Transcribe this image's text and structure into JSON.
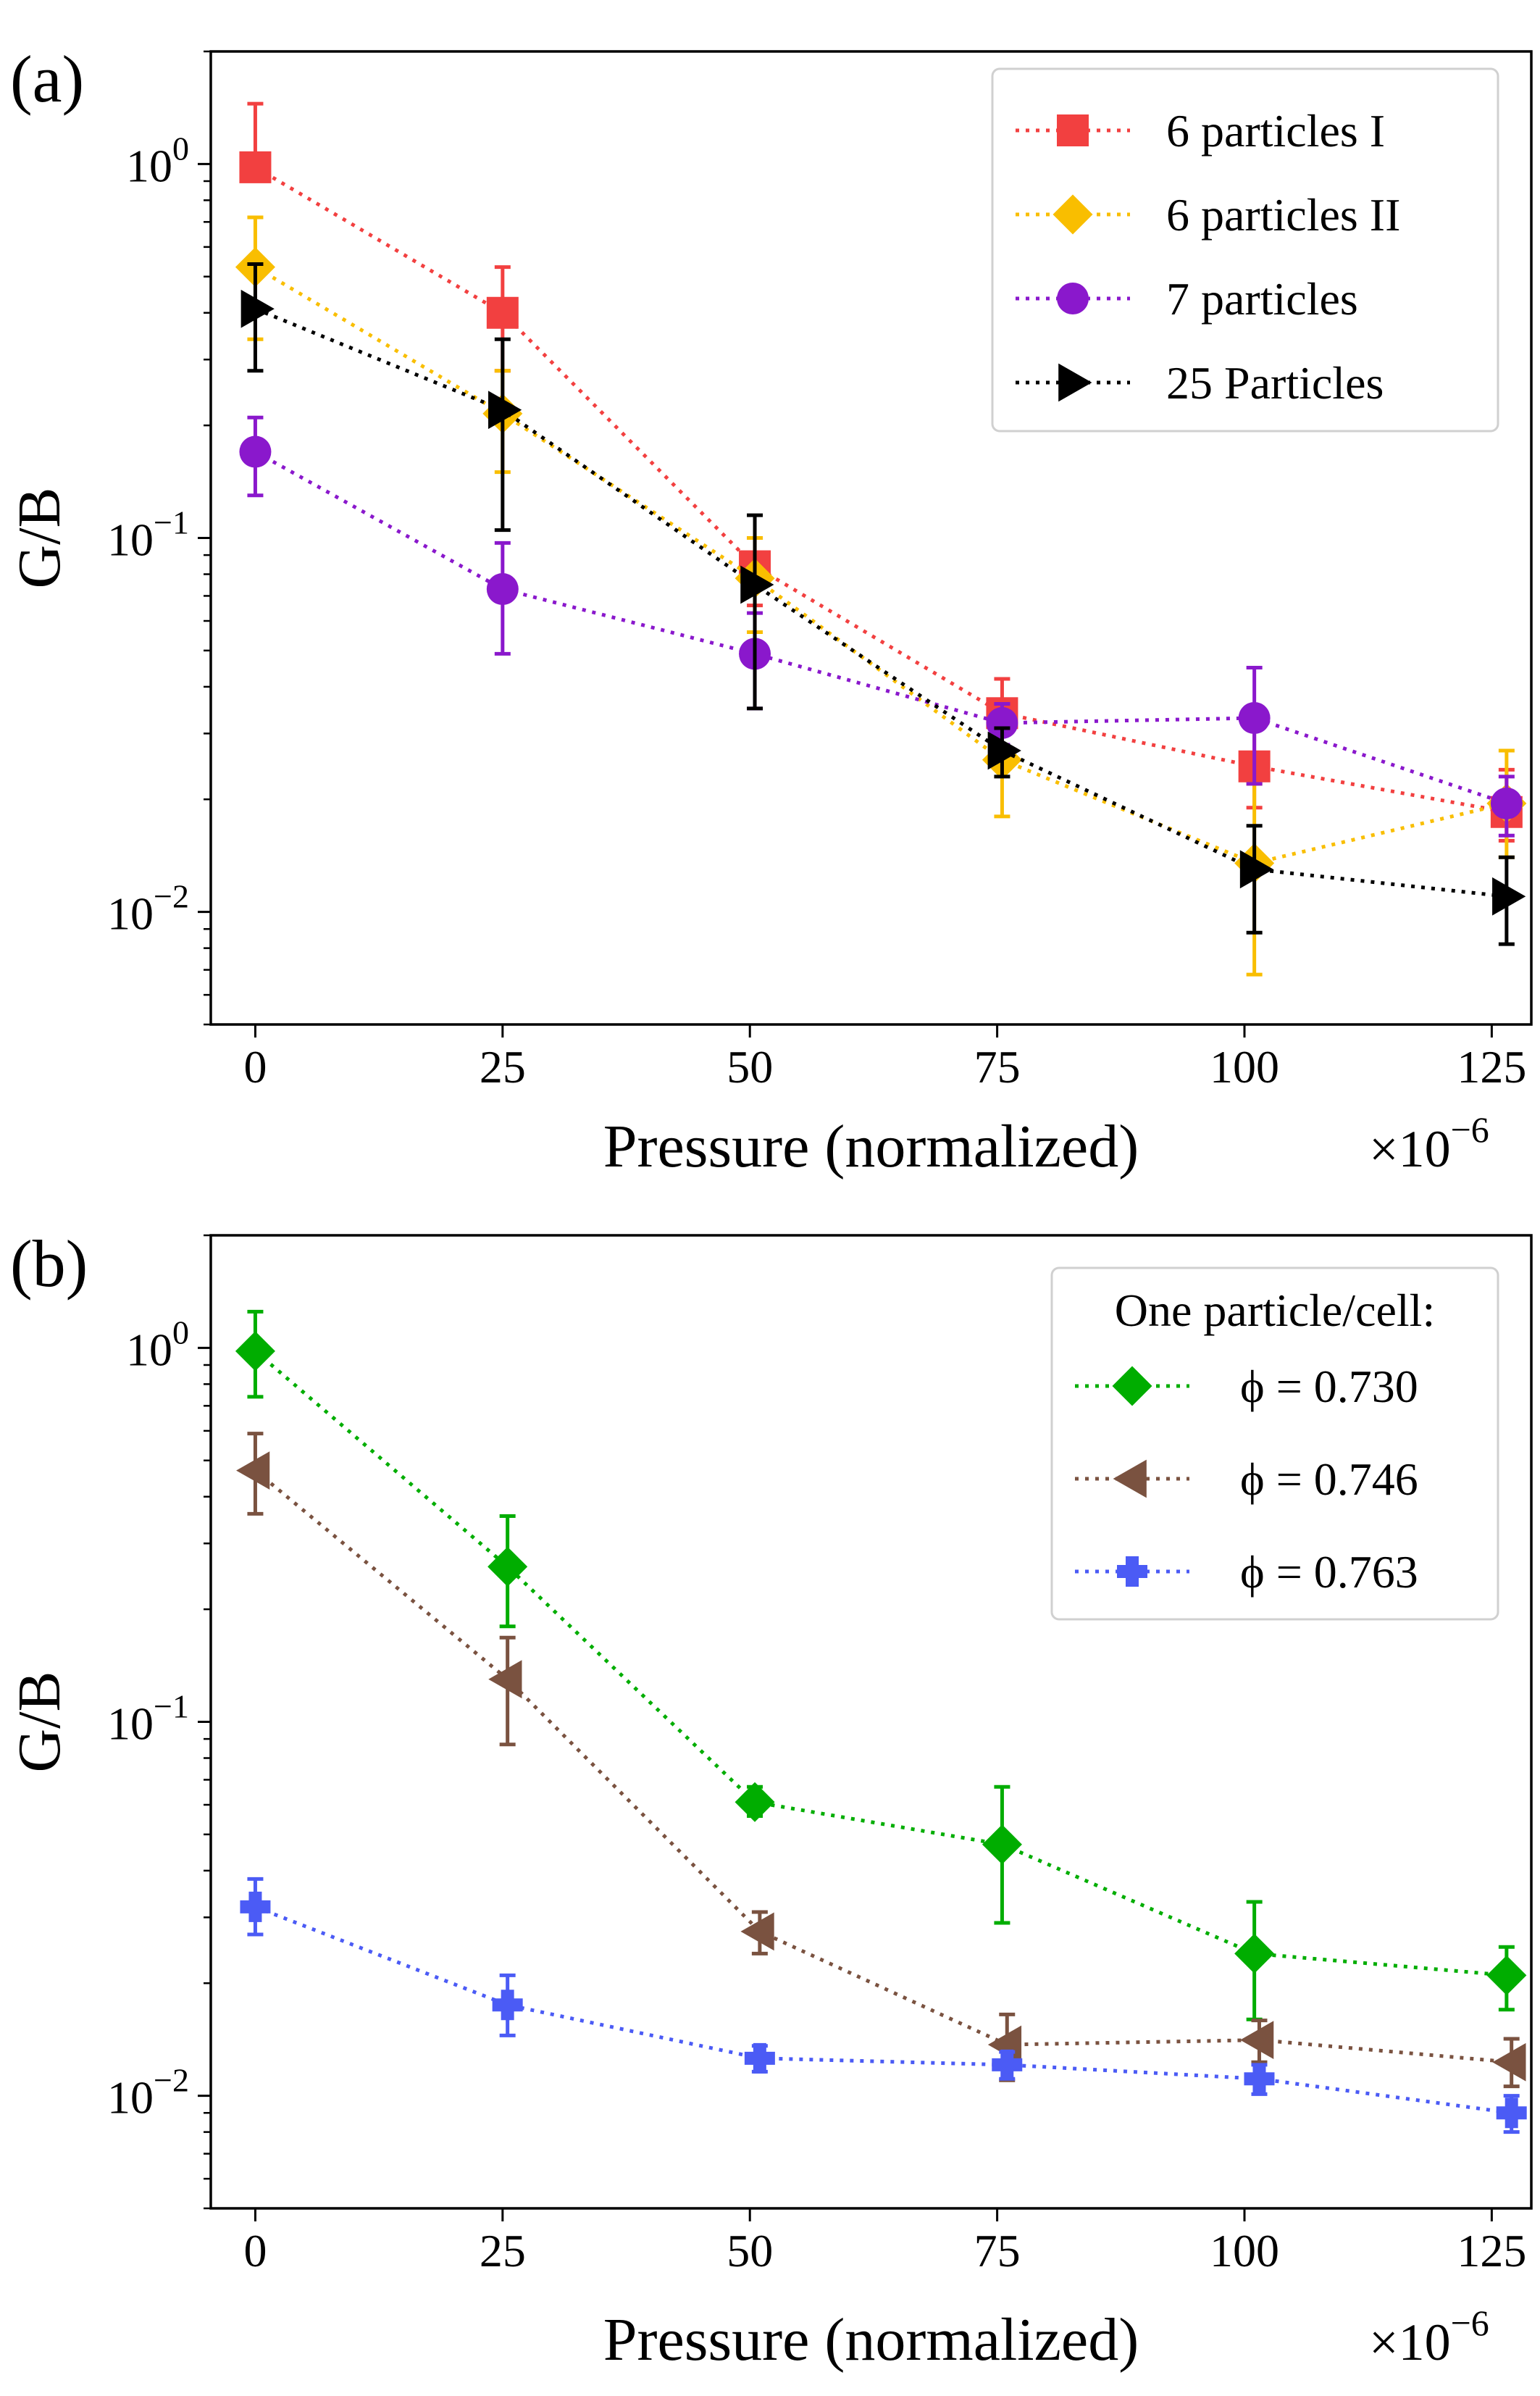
{
  "chart_data": [
    {
      "type": "line",
      "panel_label": "(a)",
      "xlabel": "Pressure (normalized)",
      "x_multiplier": "×10",
      "x_multiplier_exp": "−6",
      "ylabel": "G/B",
      "yscale": "log",
      "xlim": [
        -4.5,
        129
      ],
      "ylim": [
        0.005,
        2.0
      ],
      "xticks": [
        0,
        25,
        50,
        75,
        100,
        125
      ],
      "xtick_labels": [
        "0",
        "25",
        "50",
        "75",
        "100",
        "125"
      ],
      "yticks": [
        {
          "value": 1,
          "base": "10",
          "exp": "0"
        },
        {
          "value": 0.1,
          "base": "10",
          "exp": "−1"
        },
        {
          "value": 0.01,
          "base": "10",
          "exp": "−2"
        }
      ],
      "legend_title": "",
      "legend_position": "top-right",
      "series": [
        {
          "name": "6 particles I",
          "color": "#f24040",
          "marker": "square",
          "x": [
            0,
            25,
            50.5,
            75.5,
            101,
            126.5
          ],
          "y": [
            0.98,
            0.4,
            0.084,
            0.034,
            0.0245,
            0.0185
          ],
          "err_lo": [
            0.98,
            0.28,
            0.066,
            0.027,
            0.019,
            0.0155
          ],
          "err_hi": [
            1.45,
            0.53,
            0.1,
            0.042,
            0.032,
            0.024
          ]
        },
        {
          "name": "6 particles II",
          "color": "#f9be00",
          "marker": "diamond",
          "x": [
            0,
            25,
            50.5,
            75.5,
            101,
            126.5
          ],
          "y": [
            0.53,
            0.215,
            0.078,
            0.0255,
            0.0135,
            0.0195
          ],
          "err_lo": [
            0.34,
            0.15,
            0.056,
            0.018,
            0.0068,
            0.014
          ],
          "err_hi": [
            0.72,
            0.28,
            0.1,
            0.033,
            0.022,
            0.027
          ]
        },
        {
          "name": "7 particles",
          "color": "#8a18cc",
          "marker": "circle",
          "x": [
            0,
            25,
            50.5,
            75.5,
            101,
            126.5
          ],
          "y": [
            0.17,
            0.073,
            0.049,
            0.032,
            0.033,
            0.0195
          ],
          "err_lo": [
            0.13,
            0.049,
            0.035,
            0.028,
            0.022,
            0.016
          ],
          "err_hi": [
            0.21,
            0.097,
            0.063,
            0.036,
            0.045,
            0.023
          ]
        },
        {
          "name": "25 Particles",
          "color": "#000000",
          "marker": "triangle-right",
          "x": [
            0,
            25,
            50.5,
            75.5,
            101,
            126.5
          ],
          "y": [
            0.41,
            0.22,
            0.075,
            0.027,
            0.013,
            0.011
          ],
          "err_lo": [
            0.28,
            0.105,
            0.035,
            0.023,
            0.0088,
            0.0082
          ],
          "err_hi": [
            0.54,
            0.34,
            0.115,
            0.031,
            0.017,
            0.014
          ]
        }
      ]
    },
    {
      "type": "line",
      "panel_label": "(b)",
      "xlabel": "Pressure (normalized)",
      "x_multiplier": "×10",
      "x_multiplier_exp": "−6",
      "ylabel": "G/B",
      "yscale": "log",
      "xlim": [
        -4.5,
        129
      ],
      "ylim": [
        0.005,
        2.0
      ],
      "xticks": [
        0,
        25,
        50,
        75,
        100,
        125
      ],
      "xtick_labels": [
        "0",
        "25",
        "50",
        "75",
        "100",
        "125"
      ],
      "yticks": [
        {
          "value": 1,
          "base": "10",
          "exp": "0"
        },
        {
          "value": 0.1,
          "base": "10",
          "exp": "−1"
        },
        {
          "value": 0.01,
          "base": "10",
          "exp": "−2"
        }
      ],
      "legend_title": "One particle/cell:",
      "legend_position": "top-right",
      "series": [
        {
          "name": "ϕ = 0.730",
          "color": "#00ad00",
          "marker": "diamond",
          "x": [
            0,
            25.5,
            50.5,
            75.5,
            101,
            126.5
          ],
          "y": [
            0.98,
            0.26,
            0.061,
            0.047,
            0.024,
            0.021
          ],
          "err_lo": [
            0.74,
            0.18,
            0.056,
            0.029,
            0.016,
            0.017
          ],
          "err_hi": [
            1.25,
            0.355,
            0.067,
            0.067,
            0.033,
            0.025
          ]
        },
        {
          "name": "ϕ = 0.746",
          "color": "#7a5240",
          "marker": "triangle-left",
          "x": [
            0,
            25.5,
            51,
            76,
            101.5,
            127
          ],
          "y": [
            0.47,
            0.13,
            0.0275,
            0.0137,
            0.0141,
            0.0123
          ],
          "err_lo": [
            0.36,
            0.087,
            0.024,
            0.011,
            0.0123,
            0.0106
          ],
          "err_hi": [
            0.59,
            0.168,
            0.031,
            0.0165,
            0.0159,
            0.0142
          ]
        },
        {
          "name": "ϕ = 0.763",
          "color": "#4b5bf5",
          "marker": "plus",
          "x": [
            0,
            25.5,
            51,
            76,
            101.5,
            127
          ],
          "y": [
            0.032,
            0.0175,
            0.0126,
            0.0121,
            0.0111,
            0.009
          ],
          "err_lo": [
            0.027,
            0.0145,
            0.0116,
            0.0111,
            0.0101,
            0.008
          ],
          "err_hi": [
            0.038,
            0.021,
            0.0136,
            0.0131,
            0.0121,
            0.01
          ]
        }
      ]
    }
  ]
}
